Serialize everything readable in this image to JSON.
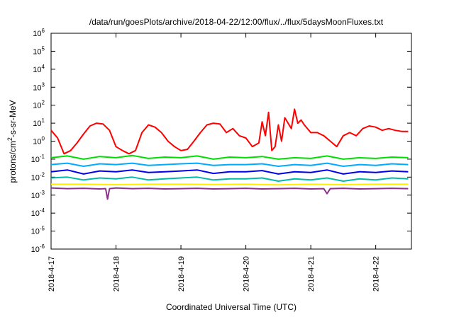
{
  "chart_data": {
    "type": "line",
    "title": "/data/run/goesPlots/archive/2018-04-22/12:00/flux/../flux/5daysMoonFluxes.txt",
    "xlabel": "Coordinated Universal Time (UTC)",
    "ylabel": "protons/cm²-s-sr-MeV",
    "ylabel_parts": {
      "pre": "protons/cm",
      "sup": "2",
      "post": "-s-sr-MeV"
    },
    "yscale": "log",
    "ylim_exp": [
      -6,
      6
    ],
    "y_ticks": [
      {
        "base": "10",
        "exp": "6"
      },
      {
        "base": "10",
        "exp": "5"
      },
      {
        "base": "10",
        "exp": "4"
      },
      {
        "base": "10",
        "exp": "3"
      },
      {
        "base": "10",
        "exp": "2"
      },
      {
        "base": "10",
        "exp": "1"
      },
      {
        "base": "10",
        "exp": "0"
      },
      {
        "base": "10",
        "exp": "-1"
      },
      {
        "base": "10",
        "exp": "-2"
      },
      {
        "base": "10",
        "exp": "-3"
      },
      {
        "base": "10",
        "exp": "-4"
      },
      {
        "base": "10",
        "exp": "-5"
      },
      {
        "base": "10",
        "exp": "-6"
      }
    ],
    "xlim_days": [
      0,
      5.55
    ],
    "x_ticks": [
      "2018-4-17",
      "2018-4-18",
      "2018-4-19",
      "2018-4-20",
      "2018-4-21",
      "2018-4-22"
    ],
    "grid": false,
    "legend": "none",
    "series": [
      {
        "color": "#ff0000",
        "x": [
          0,
          0.1,
          0.2,
          0.3,
          0.4,
          0.5,
          0.6,
          0.7,
          0.8,
          0.9,
          1.0,
          1.1,
          1.2,
          1.3,
          1.4,
          1.5,
          1.6,
          1.7,
          1.8,
          1.9,
          2.0,
          2.1,
          2.2,
          2.3,
          2.4,
          2.5,
          2.6,
          2.7,
          2.8,
          2.9,
          3.0,
          3.1,
          3.2,
          3.25,
          3.3,
          3.35,
          3.4,
          3.45,
          3.5,
          3.55,
          3.6,
          3.7,
          3.75,
          3.8,
          3.85,
          3.9,
          4.0,
          4.1,
          4.2,
          4.3,
          4.4,
          4.5,
          4.6,
          4.7,
          4.8,
          4.9,
          5.0,
          5.1,
          5.2,
          5.3,
          5.4,
          5.5
        ],
        "y": [
          4,
          1.5,
          0.2,
          0.3,
          0.8,
          2.5,
          7,
          10,
          9,
          4,
          0.5,
          0.3,
          0.2,
          0.3,
          3,
          8,
          6,
          3,
          1,
          0.5,
          0.3,
          0.35,
          1,
          3,
          8,
          10,
          9,
          3,
          5,
          2,
          1.5,
          0.5,
          0.8,
          12,
          2,
          40,
          0.3,
          0.5,
          8,
          1,
          20,
          5,
          60,
          10,
          15,
          8,
          3,
          3,
          2,
          1,
          0.5,
          2,
          3,
          2,
          5,
          7,
          6,
          4,
          5,
          4,
          3.5,
          3.5
        ]
      },
      {
        "color": "#00dd00",
        "x": [
          0,
          0.25,
          0.5,
          0.75,
          1.0,
          1.25,
          1.5,
          1.75,
          2.0,
          2.25,
          2.5,
          2.75,
          3.0,
          3.25,
          3.5,
          3.75,
          4.0,
          4.25,
          4.5,
          4.75,
          5.0,
          5.25,
          5.5
        ],
        "y": [
          0.12,
          0.15,
          0.1,
          0.14,
          0.12,
          0.16,
          0.11,
          0.13,
          0.12,
          0.15,
          0.1,
          0.13,
          0.12,
          0.14,
          0.1,
          0.12,
          0.11,
          0.15,
          0.1,
          0.12,
          0.11,
          0.13,
          0.12
        ]
      },
      {
        "color": "#00aaff",
        "x": [
          0,
          0.25,
          0.5,
          0.75,
          1.0,
          1.25,
          1.5,
          1.75,
          2.0,
          2.25,
          2.5,
          2.75,
          3.0,
          3.25,
          3.5,
          3.75,
          4.0,
          4.25,
          4.5,
          4.75,
          5.0,
          5.25,
          5.5
        ],
        "y": [
          0.05,
          0.06,
          0.04,
          0.055,
          0.05,
          0.06,
          0.045,
          0.05,
          0.055,
          0.06,
          0.045,
          0.05,
          0.05,
          0.055,
          0.04,
          0.05,
          0.045,
          0.06,
          0.04,
          0.05,
          0.045,
          0.055,
          0.05
        ]
      },
      {
        "color": "#0000ee",
        "x": [
          0,
          0.25,
          0.5,
          0.75,
          1.0,
          1.25,
          1.5,
          1.75,
          2.0,
          2.25,
          2.5,
          2.75,
          3.0,
          3.25,
          3.5,
          3.75,
          4.0,
          4.25,
          4.5,
          4.75,
          5.0,
          5.25,
          5.5
        ],
        "y": [
          0.02,
          0.025,
          0.015,
          0.022,
          0.02,
          0.025,
          0.018,
          0.02,
          0.022,
          0.025,
          0.016,
          0.02,
          0.02,
          0.023,
          0.015,
          0.02,
          0.018,
          0.025,
          0.015,
          0.02,
          0.018,
          0.022,
          0.02
        ]
      },
      {
        "color": "#00bbaa",
        "x": [
          0,
          0.25,
          0.5,
          0.75,
          1.0,
          1.25,
          1.5,
          1.75,
          2.0,
          2.25,
          2.5,
          2.75,
          3.0,
          3.25,
          3.5,
          3.75,
          4.0,
          4.25,
          4.5,
          4.75,
          5.0,
          5.25,
          5.5
        ],
        "y": [
          0.009,
          0.01,
          0.007,
          0.009,
          0.008,
          0.01,
          0.007,
          0.008,
          0.009,
          0.01,
          0.007,
          0.008,
          0.008,
          0.009,
          0.006,
          0.008,
          0.007,
          0.009,
          0.006,
          0.008,
          0.007,
          0.009,
          0.008
        ]
      },
      {
        "color": "#ffee00",
        "x": [
          0,
          0.5,
          1.0,
          1.5,
          2.0,
          2.5,
          3.0,
          3.5,
          4.0,
          4.5,
          5.0,
          5.5
        ],
        "y": [
          0.004,
          0.004,
          0.0038,
          0.004,
          0.004,
          0.0039,
          0.004,
          0.0037,
          0.004,
          0.0038,
          0.004,
          0.004
        ]
      },
      {
        "color": "#883388",
        "x": [
          0,
          0.25,
          0.5,
          0.75,
          0.84,
          0.87,
          0.9,
          1.0,
          1.25,
          1.5,
          1.75,
          2.0,
          2.25,
          2.5,
          2.75,
          3.0,
          3.25,
          3.5,
          3.75,
          4.0,
          4.2,
          4.25,
          4.3,
          4.5,
          4.75,
          5.0,
          5.25,
          5.5
        ],
        "y": [
          0.0025,
          0.0023,
          0.0024,
          0.0022,
          0.0023,
          0.0006,
          0.0023,
          0.0025,
          0.0023,
          0.0024,
          0.0022,
          0.0023,
          0.0024,
          0.0022,
          0.0023,
          0.0024,
          0.0022,
          0.0023,
          0.0024,
          0.0022,
          0.0023,
          0.0012,
          0.0023,
          0.0024,
          0.0022,
          0.0023,
          0.0024,
          0.0023
        ]
      }
    ]
  }
}
